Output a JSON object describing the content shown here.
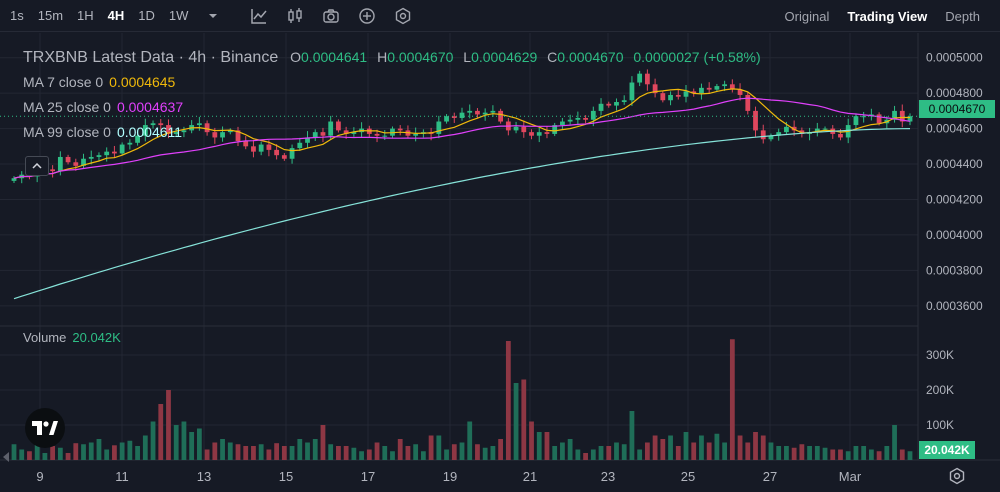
{
  "toolbar": {
    "intervals": [
      "1s",
      "15m",
      "1H",
      "4H",
      "1D",
      "1W"
    ],
    "active_interval": "4H",
    "tools": [
      "chevron-down-icon",
      "indicator-icon",
      "candle-type-icon",
      "camera-icon",
      "plus-circle-icon",
      "settings-hex-icon"
    ],
    "views": [
      "Original",
      "Trading View",
      "Depth"
    ],
    "active_view": "Trading View"
  },
  "legend": {
    "title": "TRXBNB Latest Data · 4h · Binance",
    "o_label": "O",
    "o_value": "0.0004641",
    "h_label": "H",
    "h_value": "0.0004670",
    "l_label": "L",
    "l_value": "0.0004629",
    "c_label": "C",
    "c_value": "0.0004670",
    "change": "0.0000027 (+0.58%)",
    "ma7_label": "MA 7 close 0",
    "ma7_value": "0.0004645",
    "ma25_label": "MA 25 close 0",
    "ma25_value": "0.0004637",
    "ma99_label": "MA 99 close 0",
    "ma99_value": "0.0004611"
  },
  "volume": {
    "label": "Volume",
    "value": "20.042K"
  },
  "current_price": "0.0004670",
  "colors": {
    "up": "#2ebd85",
    "down": "#e0475e",
    "ma7": "#f0b90b",
    "ma25": "#e040fb",
    "ma99": "#86e3d9",
    "grid": "#232733",
    "bg": "#161a25"
  },
  "chart_data": {
    "type": "candlestick",
    "price_axis_labels": [
      "0.0005000",
      "0.0004800",
      "0.0004600",
      "0.0004400",
      "0.0004200",
      "0.0004000",
      "0.0003800",
      "0.0003600"
    ],
    "price_range": [
      0.000352,
      0.00051
    ],
    "volume_axis_labels": [
      "300K",
      "200K",
      "100K"
    ],
    "volume_range": [
      0,
      360000
    ],
    "x_labels": [
      "9",
      "11",
      "13",
      "15",
      "17",
      "19",
      "21",
      "23",
      "25",
      "27",
      "Mar"
    ],
    "closes": [
      0.000432,
      0.000434,
      0.000433,
      0.000436,
      0.000437,
      0.000436,
      0.000444,
      0.000441,
      0.000439,
      0.000443,
      0.000444,
      0.000445,
      0.000447,
      0.000446,
      0.000451,
      0.000452,
      0.000456,
      0.000462,
      0.000463,
      0.000462,
      0.000457,
      0.000458,
      0.000459,
      0.000462,
      0.000463,
      0.000458,
      0.000455,
      0.000458,
      0.000459,
      0.000453,
      0.00045,
      0.000447,
      0.000451,
      0.000448,
      0.000445,
      0.000443,
      0.000449,
      0.000452,
      0.000455,
      0.000458,
      0.000456,
      0.000464,
      0.000459,
      0.000457,
      0.000458,
      0.00046,
      0.000457,
      0.000456,
      0.000456,
      0.00046,
      0.000459,
      0.000456,
      0.000457,
      0.000458,
      0.000457,
      0.000464,
      0.000467,
      0.000466,
      0.000469,
      0.00047,
      0.000468,
      0.000469,
      0.00047,
      0.000464,
      0.000459,
      0.000461,
      0.000458,
      0.000456,
      0.000458,
      0.000457,
      0.000462,
      0.000464,
      0.000465,
      0.000466,
      0.000465,
      0.00047,
      0.000474,
      0.000473,
      0.000475,
      0.000476,
      0.000486,
      0.000491,
      0.000485,
      0.00048,
      0.000476,
      0.000479,
      0.000478,
      0.000481,
      0.00048,
      0.000483,
      0.000482,
      0.000484,
      0.000485,
      0.000482,
      0.000479,
      0.00047,
      0.000459,
      0.000454,
      0.000456,
      0.000458,
      0.000461,
      0.000459,
      0.000457,
      0.000458,
      0.00046,
      0.00046,
      0.000457,
      0.000455,
      0.000462,
      0.000467,
      0.000467,
      0.000468,
      0.000463,
      0.000465,
      0.00047,
      0.000464,
      0.000467
    ],
    "volumes": [
      45000,
      30000,
      25000,
      50000,
      20000,
      40000,
      35000,
      20000,
      48000,
      45000,
      50000,
      60000,
      30000,
      42000,
      50000,
      55000,
      40000,
      70000,
      110000,
      160000,
      200000,
      100000,
      110000,
      80000,
      90000,
      30000,
      50000,
      60000,
      50000,
      45000,
      40000,
      40000,
      45000,
      30000,
      48000,
      40000,
      40000,
      60000,
      50000,
      60000,
      100000,
      45000,
      40000,
      40000,
      35000,
      25000,
      30000,
      50000,
      40000,
      25000,
      60000,
      40000,
      45000,
      25000,
      70000,
      70000,
      30000,
      45000,
      50000,
      110000,
      45000,
      35000,
      40000,
      60000,
      340000,
      220000,
      230000,
      110000,
      80000,
      80000,
      40000,
      50000,
      60000,
      30000,
      20000,
      30000,
      40000,
      40000,
      50000,
      45000,
      140000,
      30000,
      50000,
      70000,
      60000,
      70000,
      40000,
      80000,
      50000,
      70000,
      50000,
      75000,
      50000,
      345000,
      70000,
      50000,
      80000,
      70000,
      50000,
      40000,
      40000,
      35000,
      45000,
      40000,
      40000,
      35000,
      30000,
      30000,
      25000,
      40000,
      40000,
      30000,
      25000,
      40000,
      100000,
      30000,
      25000
    ]
  }
}
